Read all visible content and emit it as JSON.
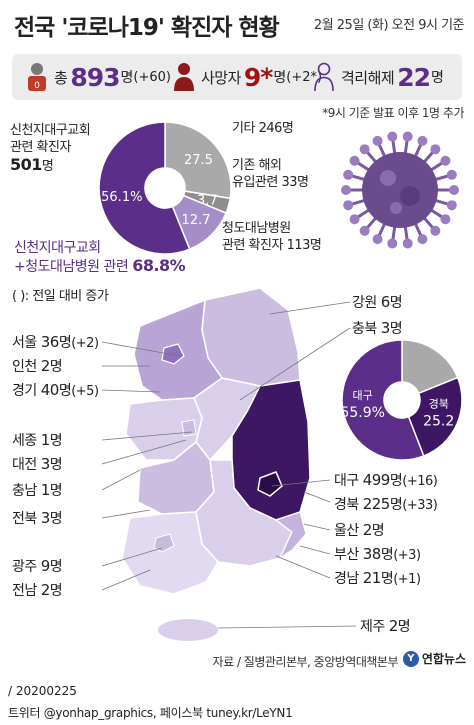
{
  "title": "전국 '코로나19' 확진자 현황",
  "date": "2월 25일 (화) 오전 9시 기준",
  "stats": {
    "total_label": "총",
    "total_value": "893",
    "total_unit": "명",
    "total_change": "(+60)",
    "death_label": "사망자",
    "death_value": "9*",
    "death_unit": "명",
    "death_change": "(+2*)",
    "release_label": "격리해제",
    "release_value": "22",
    "release_unit": "명"
  },
  "note": "*9시 기준 발표 이후 1명 추가",
  "donut_top": {
    "values": [
      27.5,
      3.7,
      12.7,
      56.1
    ],
    "labels": [
      "27.5",
      "3.7",
      "12.7",
      "56.1%"
    ],
    "colors": [
      "#a9a9a9",
      "#8e8e8e",
      "#a58ec8",
      "#5b2e8a"
    ]
  },
  "annotations": {
    "shincheonji_label1": "신천지대구교회",
    "shincheonji_label2": "관련 확진자",
    "shincheonji_value": "501",
    "shincheonji_unit": "명",
    "other_label": "기타",
    "other_value": "246명",
    "overseas_label1": "기존 해외",
    "overseas_label2": "유입관련",
    "overseas_value": "33명",
    "cheongdo_label1": "청도대남병원",
    "cheongdo_label2": "관련 확진자",
    "cheongdo_value": "113명",
    "combined_label1": "신천지대구교회",
    "combined_label2": "+청도대남병원 관련",
    "combined_value": "68.8%"
  },
  "legend_change": "( ): 전일 대비 증가",
  "donut_region": {
    "values": [
      18.9,
      25.2,
      55.9
    ],
    "labels": [
      "",
      "25.2",
      "55.9%"
    ],
    "names": [
      "",
      "경북",
      "대구"
    ],
    "colors": [
      "#a9a9a9",
      "#3d1763",
      "#5b2e8a"
    ]
  },
  "regions": {
    "seoul": {
      "name": "서울",
      "count": "36",
      "unit": "명",
      "change": "(+2)"
    },
    "incheon": {
      "name": "인천",
      "count": "2",
      "unit": "명",
      "change": ""
    },
    "gyeonggi": {
      "name": "경기",
      "count": "40",
      "unit": "명",
      "change": "(+5)"
    },
    "sejong": {
      "name": "세종",
      "count": "1",
      "unit": "명",
      "change": ""
    },
    "daejeon": {
      "name": "대전",
      "count": "3",
      "unit": "명",
      "change": ""
    },
    "chungnam": {
      "name": "충남",
      "count": "1",
      "unit": "명",
      "change": ""
    },
    "jeonbuk": {
      "name": "전북",
      "count": "3",
      "unit": "명",
      "change": ""
    },
    "gwangju": {
      "name": "광주",
      "count": "9",
      "unit": "명",
      "change": ""
    },
    "jeonnam": {
      "name": "전남",
      "count": "2",
      "unit": "명",
      "change": ""
    },
    "gangwon": {
      "name": "강원",
      "count": "6",
      "unit": "명",
      "change": ""
    },
    "chungbuk": {
      "name": "충북",
      "count": "3",
      "unit": "명",
      "change": ""
    },
    "daegu": {
      "name": "대구",
      "count": "499",
      "unit": "명",
      "change": "(+16)"
    },
    "gyeongbuk": {
      "name": "경북",
      "count": "225",
      "unit": "명",
      "change": "(+33)"
    },
    "ulsan": {
      "name": "울산",
      "count": "2",
      "unit": "명",
      "change": ""
    },
    "busan": {
      "name": "부산",
      "count": "38",
      "unit": "명",
      "change": "(+3)"
    },
    "gyeongnam": {
      "name": "경남",
      "count": "21",
      "unit": "명",
      "change": "(+1)"
    },
    "jeju": {
      "name": "제주",
      "count": "2",
      "unit": "명",
      "change": ""
    }
  },
  "source": "자료 / 질병관리본부, 중앙방역대책본부",
  "logo": "연합뉴스",
  "footer_date": "/ 20200225",
  "footer_social": "트위터 @yonhap_graphics, 페이스북 tuney.kr/LeYN1"
}
